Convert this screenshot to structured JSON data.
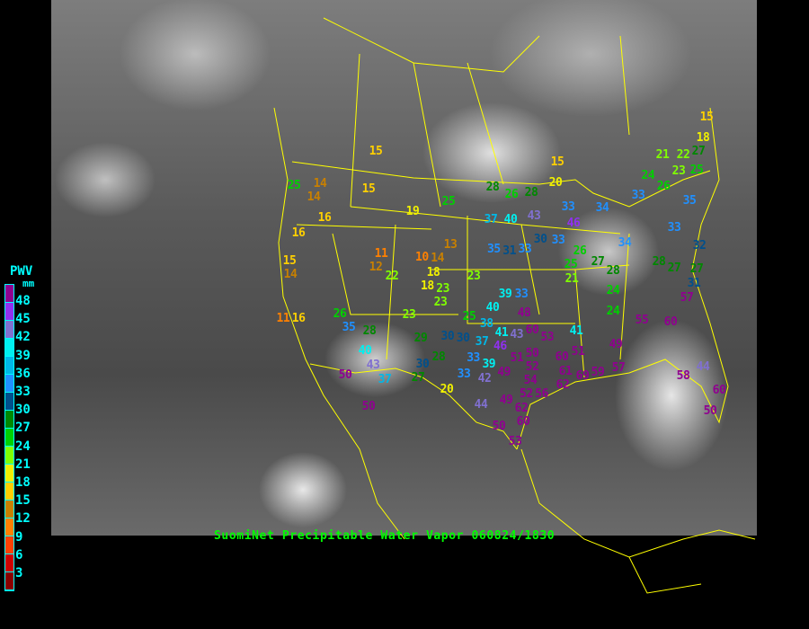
{
  "caption": "SuomiNet Precipitable Water Vapor 060824/1830",
  "legend": {
    "title": "PWV",
    "unit": "mm",
    "ticks": [
      "48",
      "45",
      "42",
      "39",
      "36",
      "33",
      "30",
      "27",
      "24",
      "21",
      "18",
      "15",
      "12",
      "9",
      "6",
      "3"
    ],
    "colors_top_to_bottom": [
      "#900090",
      "#9030f0",
      "#8070d0",
      "#00f0f0",
      "#00b8e8",
      "#2090ff",
      "#00508c",
      "#008800",
      "#00d000",
      "#80ff00",
      "#f0f000",
      "#ffd000",
      "#c88000",
      "#ff8000",
      "#ff4000",
      "#d00000",
      "#8b0000"
    ]
  },
  "stations": [
    15,
    25,
    14,
    14,
    15,
    16,
    19,
    16,
    15,
    14,
    11,
    12,
    10,
    14,
    13,
    18,
    18,
    22,
    23,
    23,
    23,
    25,
    28,
    26,
    28,
    37,
    40,
    43,
    35,
    31,
    33,
    30,
    33,
    46,
    33,
    34,
    20,
    15,
    26,
    35,
    28,
    29,
    30,
    30,
    23,
    25,
    37,
    46,
    40,
    43,
    37,
    50,
    27,
    30,
    28,
    20,
    33,
    33,
    39,
    42,
    49,
    51,
    50,
    52,
    50,
    44,
    49,
    50,
    62,
    60,
    53,
    54,
    52,
    56,
    60,
    61,
    62,
    69,
    59,
    57,
    51,
    41,
    49,
    55,
    60,
    57,
    58,
    60,
    50,
    44,
    24,
    24,
    28,
    27,
    26,
    25,
    21,
    34,
    28,
    27,
    27,
    31,
    32,
    33,
    35,
    33,
    24,
    26,
    21,
    22,
    27,
    23,
    25,
    18,
    15,
    40,
    39,
    33,
    48,
    60,
    53,
    38,
    41,
    43,
    11,
    16
  ]
}
